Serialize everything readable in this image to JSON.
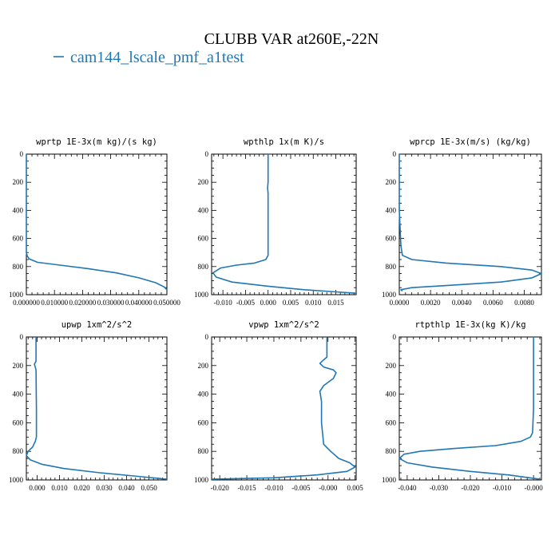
{
  "title": "CLUBB VAR at260E,-22N",
  "legend": {
    "label": "cam144_lscale_pmf_a1test",
    "color": "#1f77b4"
  },
  "chart_data": [
    {
      "type": "line",
      "title": "wprtp  1E-3x(m kg)/(s kg)",
      "xlim": [
        0,
        0.05
      ],
      "ylim": [
        1000,
        0
      ],
      "xticks": [
        0,
        0.01,
        0.02,
        0.03,
        0.04,
        0.05
      ],
      "xtick_labels": [
        "0.000000",
        "0.010000",
        "0.020000",
        "0.030000",
        "0.040000",
        "0.050000"
      ],
      "yticks": [
        0,
        200,
        400,
        600,
        800,
        1000
      ],
      "ytick_labels": [
        "0",
        "200",
        "400",
        "600",
        "800",
        "1000"
      ],
      "series": [
        {
          "x": [
            0,
            0,
            0,
            0,
            0.0003,
            0.001,
            0.004,
            0.012,
            0.022,
            0.032,
            0.04,
            0.046,
            0.049,
            0.05,
            0.05
          ],
          "y": [
            0,
            200,
            400,
            700,
            725,
            745,
            770,
            790,
            815,
            845,
            880,
            915,
            945,
            965,
            970
          ]
        }
      ]
    },
    {
      "type": "line",
      "title": "wpthlp  1x(m K)/s",
      "xlim": [
        -0.0125,
        0.0195
      ],
      "ylim": [
        1000,
        0
      ],
      "xticks": [
        -0.01,
        -0.005,
        0,
        0.005,
        0.01,
        0.015
      ],
      "xtick_labels": [
        "-0.010",
        "-0.005",
        "0.000",
        "0.005",
        "0.010",
        "0.015"
      ],
      "yticks": [
        0,
        200,
        400,
        600,
        800,
        1000
      ],
      "ytick_labels": [
        "0",
        "200",
        "400",
        "600",
        "800",
        "1000"
      ],
      "series": [
        {
          "x": [
            0.0,
            0.0,
            -0.0001,
            0.0,
            0.0,
            0.0,
            -0.0005,
            -0.003,
            -0.007,
            -0.0105,
            -0.0122,
            -0.0115,
            -0.008,
            0.0,
            0.008,
            0.015,
            0.0195
          ],
          "y": [
            0,
            200,
            240,
            280,
            500,
            720,
            750,
            775,
            790,
            810,
            845,
            875,
            910,
            940,
            965,
            980,
            990
          ]
        }
      ]
    },
    {
      "type": "line",
      "title": "wprcp  1E-3x(m/s) (kg/kg)",
      "xlim": [
        0,
        0.0091
      ],
      "ylim": [
        1000,
        0
      ],
      "xticks": [
        0,
        0.002,
        0.004,
        0.006,
        0.008
      ],
      "xtick_labels": [
        "0.0000",
        "0.0020",
        "0.0040",
        "0.0060",
        "0.0080"
      ],
      "yticks": [
        0,
        200,
        400,
        600,
        800,
        1000
      ],
      "ytick_labels": [
        "0",
        "200",
        "400",
        "600",
        "800",
        "1000"
      ],
      "series": [
        {
          "x": [
            0,
            0,
            0,
            0.0001,
            0.0002,
            0.0008,
            0.003,
            0.0065,
            0.0085,
            0.0091,
            0.0085,
            0.0065,
            0.003,
            0.0008,
            0.0001,
            0.0002
          ],
          "y": [
            0,
            200,
            400,
            650,
            720,
            750,
            775,
            800,
            825,
            850,
            880,
            910,
            935,
            950,
            965,
            975
          ]
        }
      ]
    },
    {
      "type": "line",
      "title": "upwp  1xm^2/s^2",
      "xlim": [
        -0.0048,
        0.058
      ],
      "ylim": [
        1000,
        0
      ],
      "xticks": [
        0,
        0.01,
        0.02,
        0.03,
        0.04,
        0.05
      ],
      "xtick_labels": [
        "0.000",
        "0.010",
        "0.020",
        "0.030",
        "0.040",
        "0.050"
      ],
      "yticks": [
        0,
        200,
        400,
        600,
        800,
        1000
      ],
      "ytick_labels": [
        "0",
        "200",
        "400",
        "600",
        "800",
        "1000"
      ],
      "series": [
        {
          "x": [
            -0.0005,
            -0.0005,
            -0.0012,
            -0.0005,
            -0.0003,
            -0.0003,
            -0.0008,
            -0.002,
            -0.004,
            -0.0048,
            -0.003,
            0.002,
            0.012,
            0.028,
            0.045,
            0.058
          ],
          "y": [
            0,
            170,
            190,
            230,
            500,
            700,
            730,
            770,
            800,
            830,
            860,
            890,
            920,
            950,
            975,
            995
          ]
        }
      ]
    },
    {
      "type": "line",
      "title": "vpwp  1xm^2/s^2",
      "xlim": [
        -0.0215,
        0.0052
      ],
      "ylim": [
        1000,
        0
      ],
      "xticks": [
        -0.02,
        -0.015,
        -0.01,
        -0.005,
        0,
        0.005
      ],
      "xtick_labels": [
        "-0.020",
        "-0.015",
        "-0.010",
        "-0.005",
        "-0.000",
        "0.005"
      ],
      "yticks": [
        0,
        200,
        400,
        600,
        800,
        1000
      ],
      "ytick_labels": [
        "0",
        "200",
        "400",
        "600",
        "800",
        "1000"
      ],
      "series": [
        {
          "x": [
            -0.0002,
            -0.0002,
            -0.0008,
            -0.0015,
            -0.0008,
            0.001,
            0.0015,
            0.001,
            -0.0008,
            -0.0015,
            -0.0012,
            -0.0012,
            -0.0008,
            0.0005,
            0.002,
            0.004,
            0.005,
            0.0035,
            -0.002,
            -0.01,
            -0.0215
          ],
          "y": [
            0,
            140,
            160,
            185,
            210,
            230,
            250,
            290,
            340,
            380,
            450,
            600,
            750,
            800,
            850,
            880,
            910,
            940,
            965,
            985,
            995
          ]
        }
      ]
    },
    {
      "type": "line",
      "title": "rtpthlp  1E-3x(kg K)/kg",
      "xlim": [
        -0.0425,
        0.0025
      ],
      "ylim": [
        1000,
        0
      ],
      "xticks": [
        -0.04,
        -0.03,
        -0.02,
        -0.01,
        0
      ],
      "xtick_labels": [
        "-0.040",
        "-0.030",
        "-0.020",
        "-0.010",
        "-0.000"
      ],
      "yticks": [
        0,
        200,
        400,
        600,
        800,
        1000
      ],
      "ytick_labels": [
        "0",
        "200",
        "400",
        "600",
        "800",
        "1000"
      ],
      "series": [
        {
          "x": [
            0,
            0,
            -0.0003,
            -0.001,
            -0.004,
            -0.012,
            -0.025,
            -0.036,
            -0.041,
            -0.0425,
            -0.04,
            -0.032,
            -0.02,
            -0.008,
            0.002
          ],
          "y": [
            0,
            500,
            670,
            700,
            730,
            760,
            780,
            800,
            820,
            850,
            880,
            910,
            940,
            965,
            995
          ]
        }
      ]
    }
  ]
}
